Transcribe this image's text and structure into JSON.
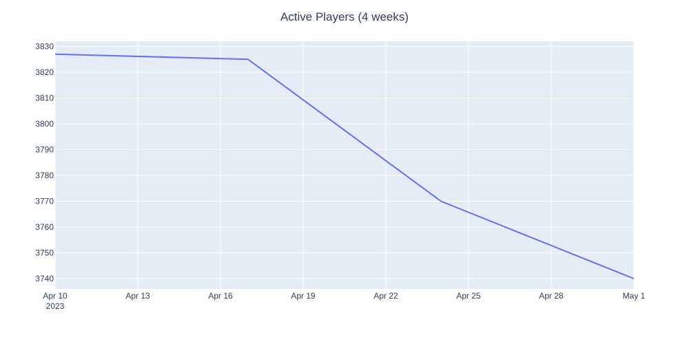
{
  "chart_data": {
    "type": "line",
    "title": "Active Players (4 weeks)",
    "xlabel": "",
    "ylabel": "",
    "x_axis_type": "date",
    "x_range": [
      "2023-04-10",
      "2023-05-01"
    ],
    "x_ticks": [
      {
        "date": "2023-04-10",
        "label": "Apr 10",
        "sublabel": "2023"
      },
      {
        "date": "2023-04-13",
        "label": "Apr 13"
      },
      {
        "date": "2023-04-16",
        "label": "Apr 16"
      },
      {
        "date": "2023-04-19",
        "label": "Apr 19"
      },
      {
        "date": "2023-04-22",
        "label": "Apr 22"
      },
      {
        "date": "2023-04-25",
        "label": "Apr 25"
      },
      {
        "date": "2023-04-28",
        "label": "Apr 28"
      },
      {
        "date": "2023-05-01",
        "label": "May 1"
      }
    ],
    "ylim": [
      3736,
      3832
    ],
    "y_ticks": [
      3740,
      3750,
      3760,
      3770,
      3780,
      3790,
      3800,
      3810,
      3820,
      3830
    ],
    "grid": true,
    "series": [
      {
        "x": [
          "2023-04-10",
          "2023-04-17",
          "2023-04-24",
          "2023-05-01"
        ],
        "values": [
          3827,
          3825,
          3770,
          3740
        ],
        "color": "#636efa"
      }
    ]
  },
  "colors": {
    "plot_background": "#e5ecf6",
    "grid": "#ffffff",
    "text": "#2a3f5f",
    "line": "#636efa"
  }
}
